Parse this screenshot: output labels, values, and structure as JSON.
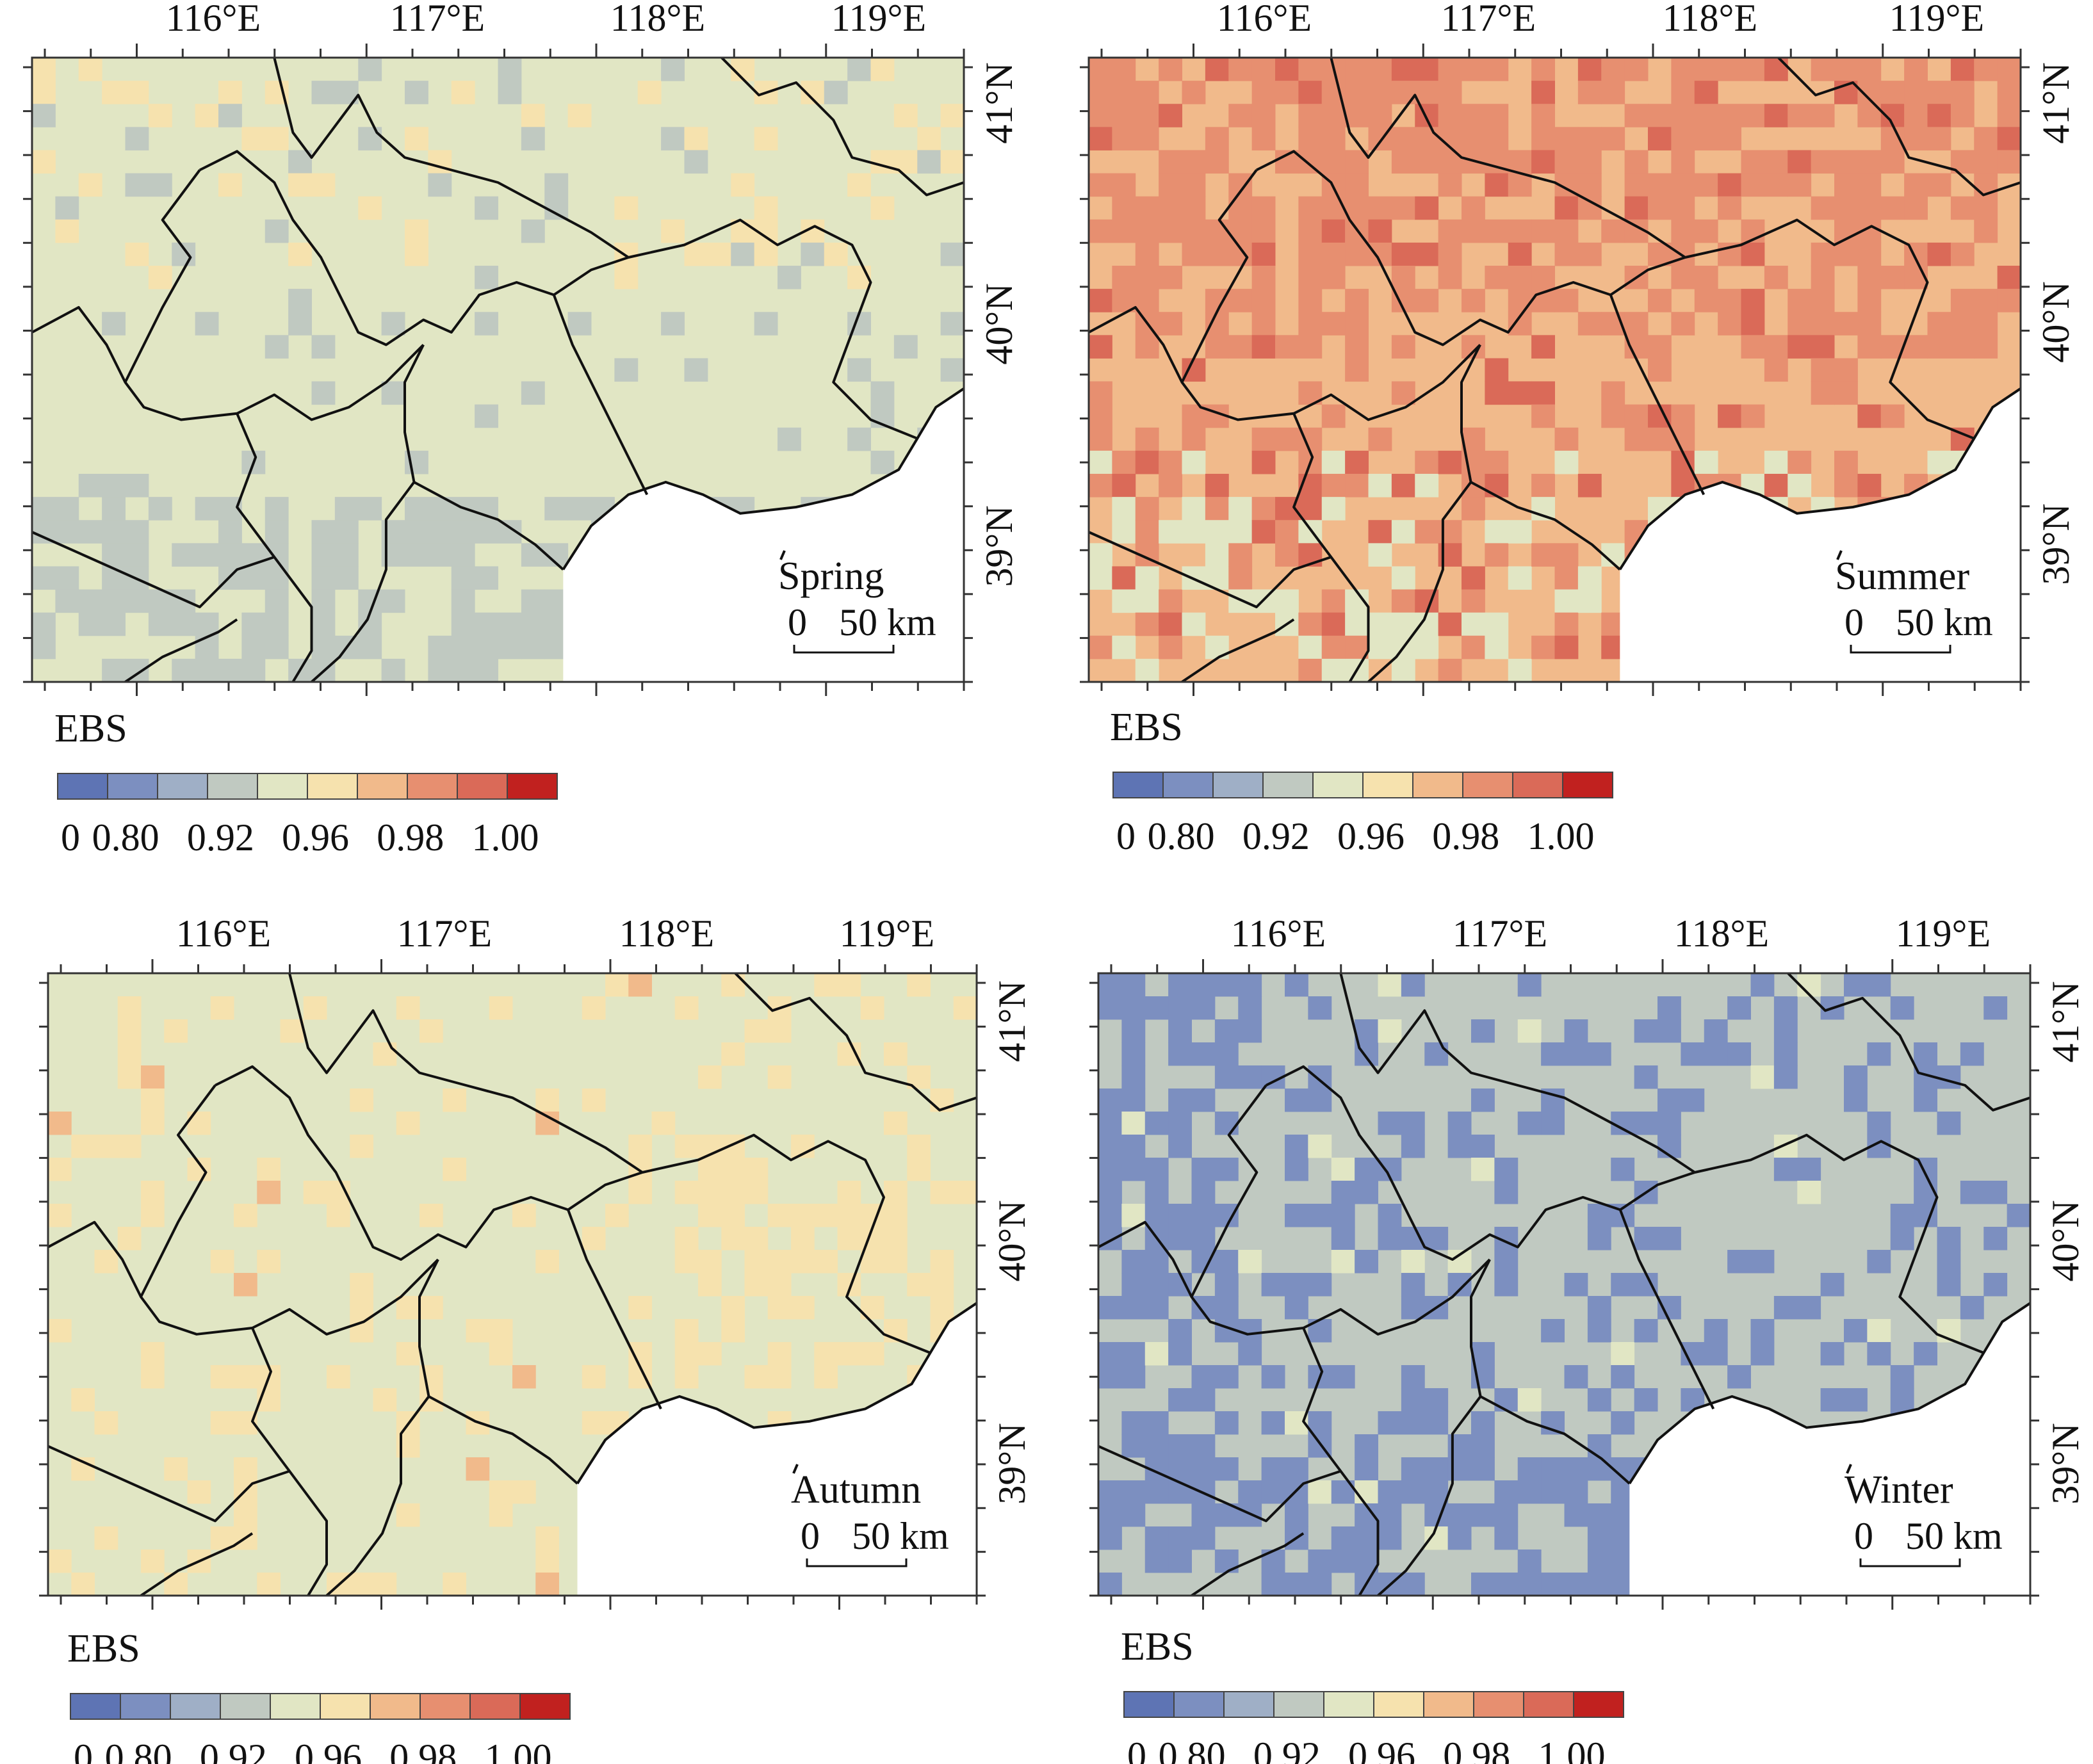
{
  "colors": {
    "scale": [
      "#5e74b4",
      "#7c8fc0",
      "#9fafc6",
      "#c0c9c1",
      "#e1e6c4",
      "#f6e2ae",
      "#f1ba8b",
      "#e78f70",
      "#da6a58",
      "#c1211f"
    ],
    "land": "#e2e6c4",
    "sea": "#ffffff",
    "border": "#111111"
  },
  "axes": {
    "lon_labels": [
      "116°E",
      "117°E",
      "118°E",
      "119°E"
    ],
    "lat_labels": [
      "41°N",
      "40°N",
      "39°N"
    ]
  },
  "legend": {
    "title": "EBS",
    "labels": [
      "0",
      "0.80",
      "0.92",
      "0.96",
      "0.98",
      "1.00"
    ]
  },
  "scale_bar": {
    "start": "0",
    "end": "50 km"
  },
  "panels": [
    {
      "id": "spring",
      "season": "Spring",
      "dominant_class": "0.92–0.96",
      "secondary_class": "0.90–0.92"
    },
    {
      "id": "summer",
      "season": "Summer",
      "dominant_class": "0.96–0.98",
      "secondary_class": "0.98–0.99"
    },
    {
      "id": "autumn",
      "season": "Autumn",
      "dominant_class": "0.92–0.96",
      "secondary_class": "0.96–0.97"
    },
    {
      "id": "winter",
      "season": "Winter",
      "dominant_class": "0.90–0.92",
      "secondary_class": "0.85–0.90"
    }
  ]
}
